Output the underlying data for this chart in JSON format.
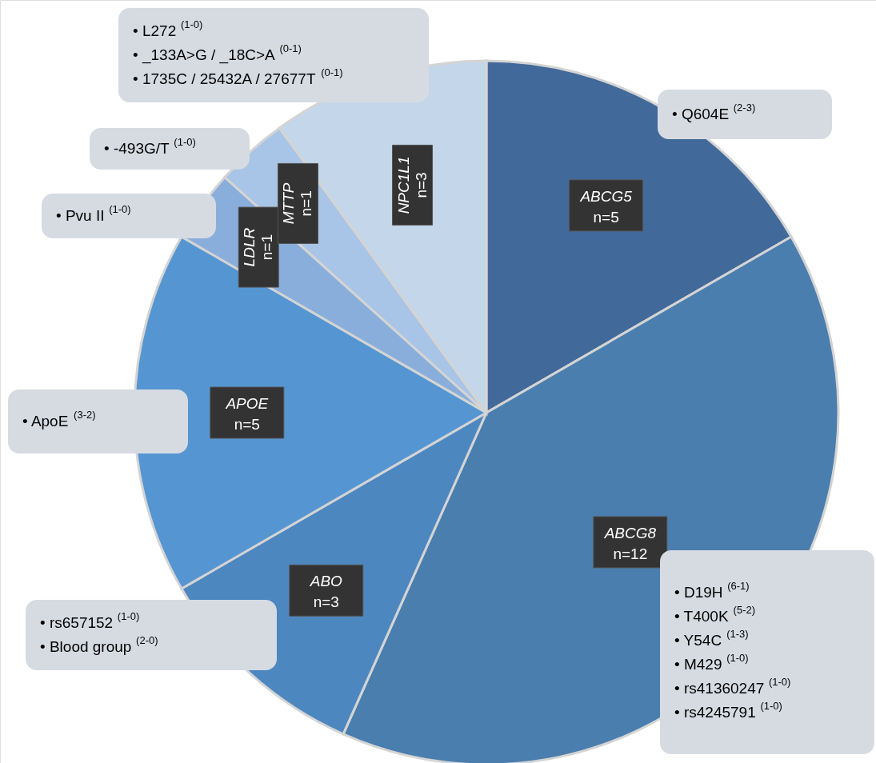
{
  "chart_data": {
    "type": "pie",
    "categories": [
      "ABCG5",
      "ABCG8",
      "ABO",
      "APOE",
      "LDLR",
      "MTTP",
      "NPC1L1"
    ],
    "values": [
      5,
      12,
      3,
      5,
      1,
      1,
      3
    ],
    "value_labels": [
      "n=5",
      "n=12",
      "n=3",
      "n=5",
      "n=1",
      "n=1",
      "n=3"
    ],
    "colors": [
      "#41699a",
      "#4a7eae",
      "#4d87c0",
      "#5596d2",
      "#8aaedb",
      "#a8c4e6",
      "#c4d6ea"
    ],
    "annotations": [
      "• L272 $^{(1-0)}$\n• _133A>G / _18C>A $^{(0-1)}$\n• 1735C / 25432A / 27677T $^{(0-1)}$",
      "• Q604E $^{(2-3)}$",
      "• -493G/T $^{(1-0)}$",
      "• Pvu II $^{(1-0)}$",
      "• ApoE $^{(3-2)}$",
      "• rs657152 $^{(1-0)}$\n• Blood group $^{(2-0)}$",
      "• D19H $^{(6-1)}$\n• T400K $^{(5-2)}$\n• Y54C $^{(1-3)}$\n• M429 $^{(1-0)}$\n• rs41360247 $^{(1-0)}$\n• rs4245791 $^{(1-0)}$"
    ]
  }
}
